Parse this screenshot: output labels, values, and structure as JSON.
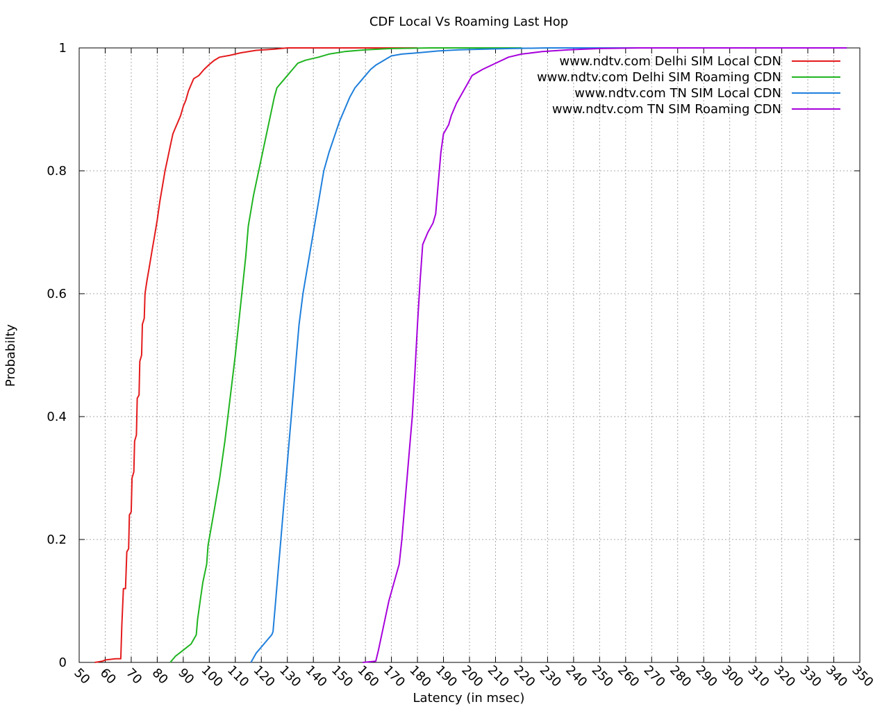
{
  "chart_data": {
    "type": "line",
    "title": "CDF Local Vs Roaming Last Hop",
    "xlabel": "Latency (in msec)",
    "ylabel": "Probabilty",
    "xlim": [
      50,
      350
    ],
    "ylim": [
      0,
      1
    ],
    "x_ticks": [
      50,
      60,
      70,
      80,
      90,
      100,
      110,
      120,
      130,
      140,
      150,
      160,
      170,
      180,
      190,
      200,
      210,
      220,
      230,
      240,
      250,
      260,
      270,
      280,
      290,
      300,
      310,
      320,
      330,
      340,
      350
    ],
    "y_ticks": [
      {
        "value": 0,
        "label": "0"
      },
      {
        "value": 0.2,
        "label": "0.2"
      },
      {
        "value": 0.4,
        "label": "0.4"
      },
      {
        "value": 0.6,
        "label": "0.6"
      },
      {
        "value": 0.8,
        "label": "0.8"
      },
      {
        "value": 1,
        "label": "1"
      }
    ],
    "grid": true,
    "legend_position": "top-right",
    "series": [
      {
        "name": "www.ndtv.com Delhi SIM Local CDN",
        "color": "#e41a1c",
        "points": [
          [
            56,
            0
          ],
          [
            59,
            0.002
          ],
          [
            60,
            0.004
          ],
          [
            64,
            0.006
          ],
          [
            66,
            0.006
          ],
          [
            66.4,
            0.06
          ],
          [
            67,
            0.12
          ],
          [
            67.8,
            0.12
          ],
          [
            68.3,
            0.18
          ],
          [
            69,
            0.185
          ],
          [
            69.3,
            0.24
          ],
          [
            70,
            0.245
          ],
          [
            70.3,
            0.3
          ],
          [
            71,
            0.31
          ],
          [
            71.3,
            0.36
          ],
          [
            72,
            0.37
          ],
          [
            72.3,
            0.43
          ],
          [
            73,
            0.435
          ],
          [
            73.3,
            0.49
          ],
          [
            74,
            0.5
          ],
          [
            74.3,
            0.55
          ],
          [
            75,
            0.56
          ],
          [
            75.3,
            0.6
          ],
          [
            76,
            0.62
          ],
          [
            77,
            0.645
          ],
          [
            78,
            0.67
          ],
          [
            79,
            0.695
          ],
          [
            80,
            0.72
          ],
          [
            81,
            0.75
          ],
          [
            82,
            0.775
          ],
          [
            83,
            0.8
          ],
          [
            84,
            0.82
          ],
          [
            85,
            0.84
          ],
          [
            86,
            0.86
          ],
          [
            87,
            0.87
          ],
          [
            88,
            0.88
          ],
          [
            89,
            0.89
          ],
          [
            90,
            0.905
          ],
          [
            91,
            0.915
          ],
          [
            92,
            0.93
          ],
          [
            93,
            0.94
          ],
          [
            94,
            0.95
          ],
          [
            96,
            0.955
          ],
          [
            98,
            0.965
          ],
          [
            100,
            0.973
          ],
          [
            102,
            0.98
          ],
          [
            104,
            0.985
          ],
          [
            108,
            0.988
          ],
          [
            112,
            0.992
          ],
          [
            118,
            0.996
          ],
          [
            125,
            0.998
          ],
          [
            130,
            1
          ],
          [
            180,
            1
          ]
        ]
      },
      {
        "name": "www.ndtv.com Delhi SIM Roaming CDN",
        "color": "#1fb41f",
        "points": [
          [
            85,
            0
          ],
          [
            87,
            0.01
          ],
          [
            90,
            0.02
          ],
          [
            93,
            0.03
          ],
          [
            95,
            0.045
          ],
          [
            95.5,
            0.07
          ],
          [
            96.5,
            0.1
          ],
          [
            97.5,
            0.13
          ],
          [
            99,
            0.16
          ],
          [
            99.5,
            0.19
          ],
          [
            102,
            0.25
          ],
          [
            104,
            0.3
          ],
          [
            106,
            0.36
          ],
          [
            108,
            0.43
          ],
          [
            110,
            0.5
          ],
          [
            112,
            0.58
          ],
          [
            114,
            0.66
          ],
          [
            115,
            0.71
          ],
          [
            117,
            0.76
          ],
          [
            119,
            0.8
          ],
          [
            121,
            0.84
          ],
          [
            123,
            0.88
          ],
          [
            125,
            0.92
          ],
          [
            126,
            0.935
          ],
          [
            128,
            0.945
          ],
          [
            130,
            0.955
          ],
          [
            132,
            0.965
          ],
          [
            134,
            0.975
          ],
          [
            137,
            0.98
          ],
          [
            142,
            0.985
          ],
          [
            146,
            0.99
          ],
          [
            152,
            0.994
          ],
          [
            160,
            0.997
          ],
          [
            170,
            0.999
          ],
          [
            185,
            1
          ],
          [
            220,
            1
          ]
        ]
      },
      {
        "name": "www.ndtv.com TN SIM Local CDN",
        "color": "#1e7fdc",
        "points": [
          [
            116,
            0
          ],
          [
            118,
            0.015
          ],
          [
            120,
            0.025
          ],
          [
            122,
            0.035
          ],
          [
            124,
            0.045
          ],
          [
            124.5,
            0.05
          ],
          [
            125.5,
            0.1
          ],
          [
            126.5,
            0.15
          ],
          [
            127.5,
            0.2
          ],
          [
            128.5,
            0.25
          ],
          [
            129.5,
            0.3
          ],
          [
            130.5,
            0.35
          ],
          [
            131.5,
            0.4
          ],
          [
            132.5,
            0.45
          ],
          [
            133.5,
            0.5
          ],
          [
            134.5,
            0.55
          ],
          [
            136,
            0.6
          ],
          [
            138,
            0.65
          ],
          [
            140,
            0.7
          ],
          [
            142,
            0.75
          ],
          [
            144,
            0.8
          ],
          [
            146,
            0.83
          ],
          [
            148,
            0.855
          ],
          [
            150,
            0.88
          ],
          [
            152,
            0.9
          ],
          [
            154,
            0.92
          ],
          [
            156,
            0.935
          ],
          [
            158,
            0.945
          ],
          [
            160,
            0.955
          ],
          [
            162,
            0.965
          ],
          [
            164,
            0.972
          ],
          [
            166,
            0.977
          ],
          [
            168,
            0.982
          ],
          [
            170,
            0.987
          ],
          [
            174,
            0.99
          ],
          [
            180,
            0.992
          ],
          [
            188,
            0.995
          ],
          [
            196,
            0.997
          ],
          [
            206,
            0.998
          ],
          [
            216,
            0.999
          ],
          [
            230,
            1
          ],
          [
            345,
            1
          ]
        ]
      },
      {
        "name": "www.ndtv.com TN SIM Roaming CDN",
        "color": "#a700dc",
        "points": [
          [
            159,
            0
          ],
          [
            164,
            0.002
          ],
          [
            165,
            0.02
          ],
          [
            167,
            0.06
          ],
          [
            169,
            0.1
          ],
          [
            171,
            0.13
          ],
          [
            173,
            0.16
          ],
          [
            174,
            0.2
          ],
          [
            175,
            0.25
          ],
          [
            176,
            0.3
          ],
          [
            177,
            0.35
          ],
          [
            178,
            0.4
          ],
          [
            179,
            0.47
          ],
          [
            180,
            0.55
          ],
          [
            181,
            0.62
          ],
          [
            182,
            0.68
          ],
          [
            184,
            0.7
          ],
          [
            186,
            0.715
          ],
          [
            187,
            0.73
          ],
          [
            188,
            0.78
          ],
          [
            189,
            0.83
          ],
          [
            190,
            0.86
          ],
          [
            192,
            0.875
          ],
          [
            193,
            0.89
          ],
          [
            195,
            0.91
          ],
          [
            197,
            0.925
          ],
          [
            199,
            0.94
          ],
          [
            201,
            0.955
          ],
          [
            205,
            0.965
          ],
          [
            210,
            0.975
          ],
          [
            215,
            0.985
          ],
          [
            220,
            0.99
          ],
          [
            228,
            0.994
          ],
          [
            238,
            0.997
          ],
          [
            250,
            0.999
          ],
          [
            265,
            1
          ],
          [
            345,
            1
          ]
        ]
      }
    ]
  }
}
